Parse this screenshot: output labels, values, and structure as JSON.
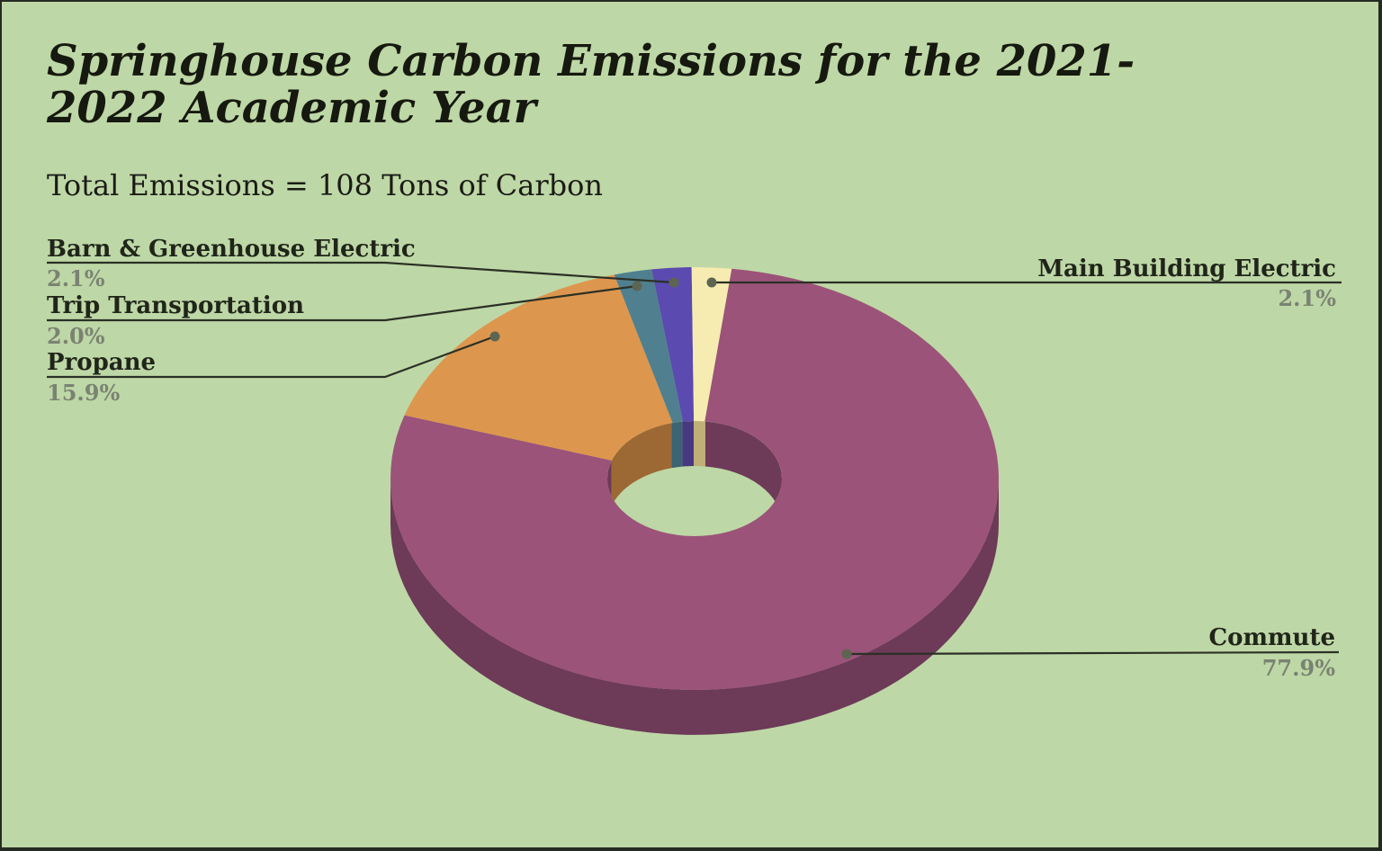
{
  "page": {
    "background_color": "#bed7a6",
    "border_color": "#262b21"
  },
  "chart_data": {
    "type": "pie",
    "style": "3d-donut",
    "title": "Springhouse Carbon Emissions for the 2021-2022 Academic Year",
    "subtitle": "Total Emissions = 108 Tons of Carbon",
    "total_tons_of_carbon": 108,
    "unit": "percent of total emissions",
    "label_style": "callouts-with-leader-lines",
    "start_angle_deg": 7,
    "background_color": "#bed7a6",
    "hole_color": "#bed7a6",
    "leader_line_color": "#2b3026",
    "leader_dot_color": "#5d6552",
    "categories": [
      "Commute",
      "Propane",
      "Trip Transportation",
      "Barn & Greenhouse Electric",
      "Main Building Electric"
    ],
    "values": [
      77.9,
      15.9,
      2.0,
      2.1,
      2.1
    ],
    "slices": [
      {
        "label": "Commute",
        "pct": 77.9,
        "pct_label": "77.9%",
        "color": "#9b5379",
        "dark_color": "#6d3a58",
        "label_side": "right"
      },
      {
        "label": "Propane",
        "pct": 15.9,
        "pct_label": "15.9%",
        "color": "#dd964d",
        "dark_color": "#9c6833",
        "label_side": "left"
      },
      {
        "label": "Trip Transportation",
        "pct": 2.0,
        "pct_label": "2.0%",
        "color": "#50808f",
        "dark_color": "#3c6372",
        "label_side": "left"
      },
      {
        "label": "Barn & Greenhouse Electric",
        "pct": 2.1,
        "pct_label": "2.1%",
        "color": "#5b4ab0",
        "dark_color": "#46397f",
        "label_side": "left"
      },
      {
        "label": "Main Building Electric",
        "pct": 2.1,
        "pct_label": "2.1%",
        "color": "#f6ecb1",
        "dark_color": "#c0b077",
        "label_side": "right"
      }
    ]
  }
}
